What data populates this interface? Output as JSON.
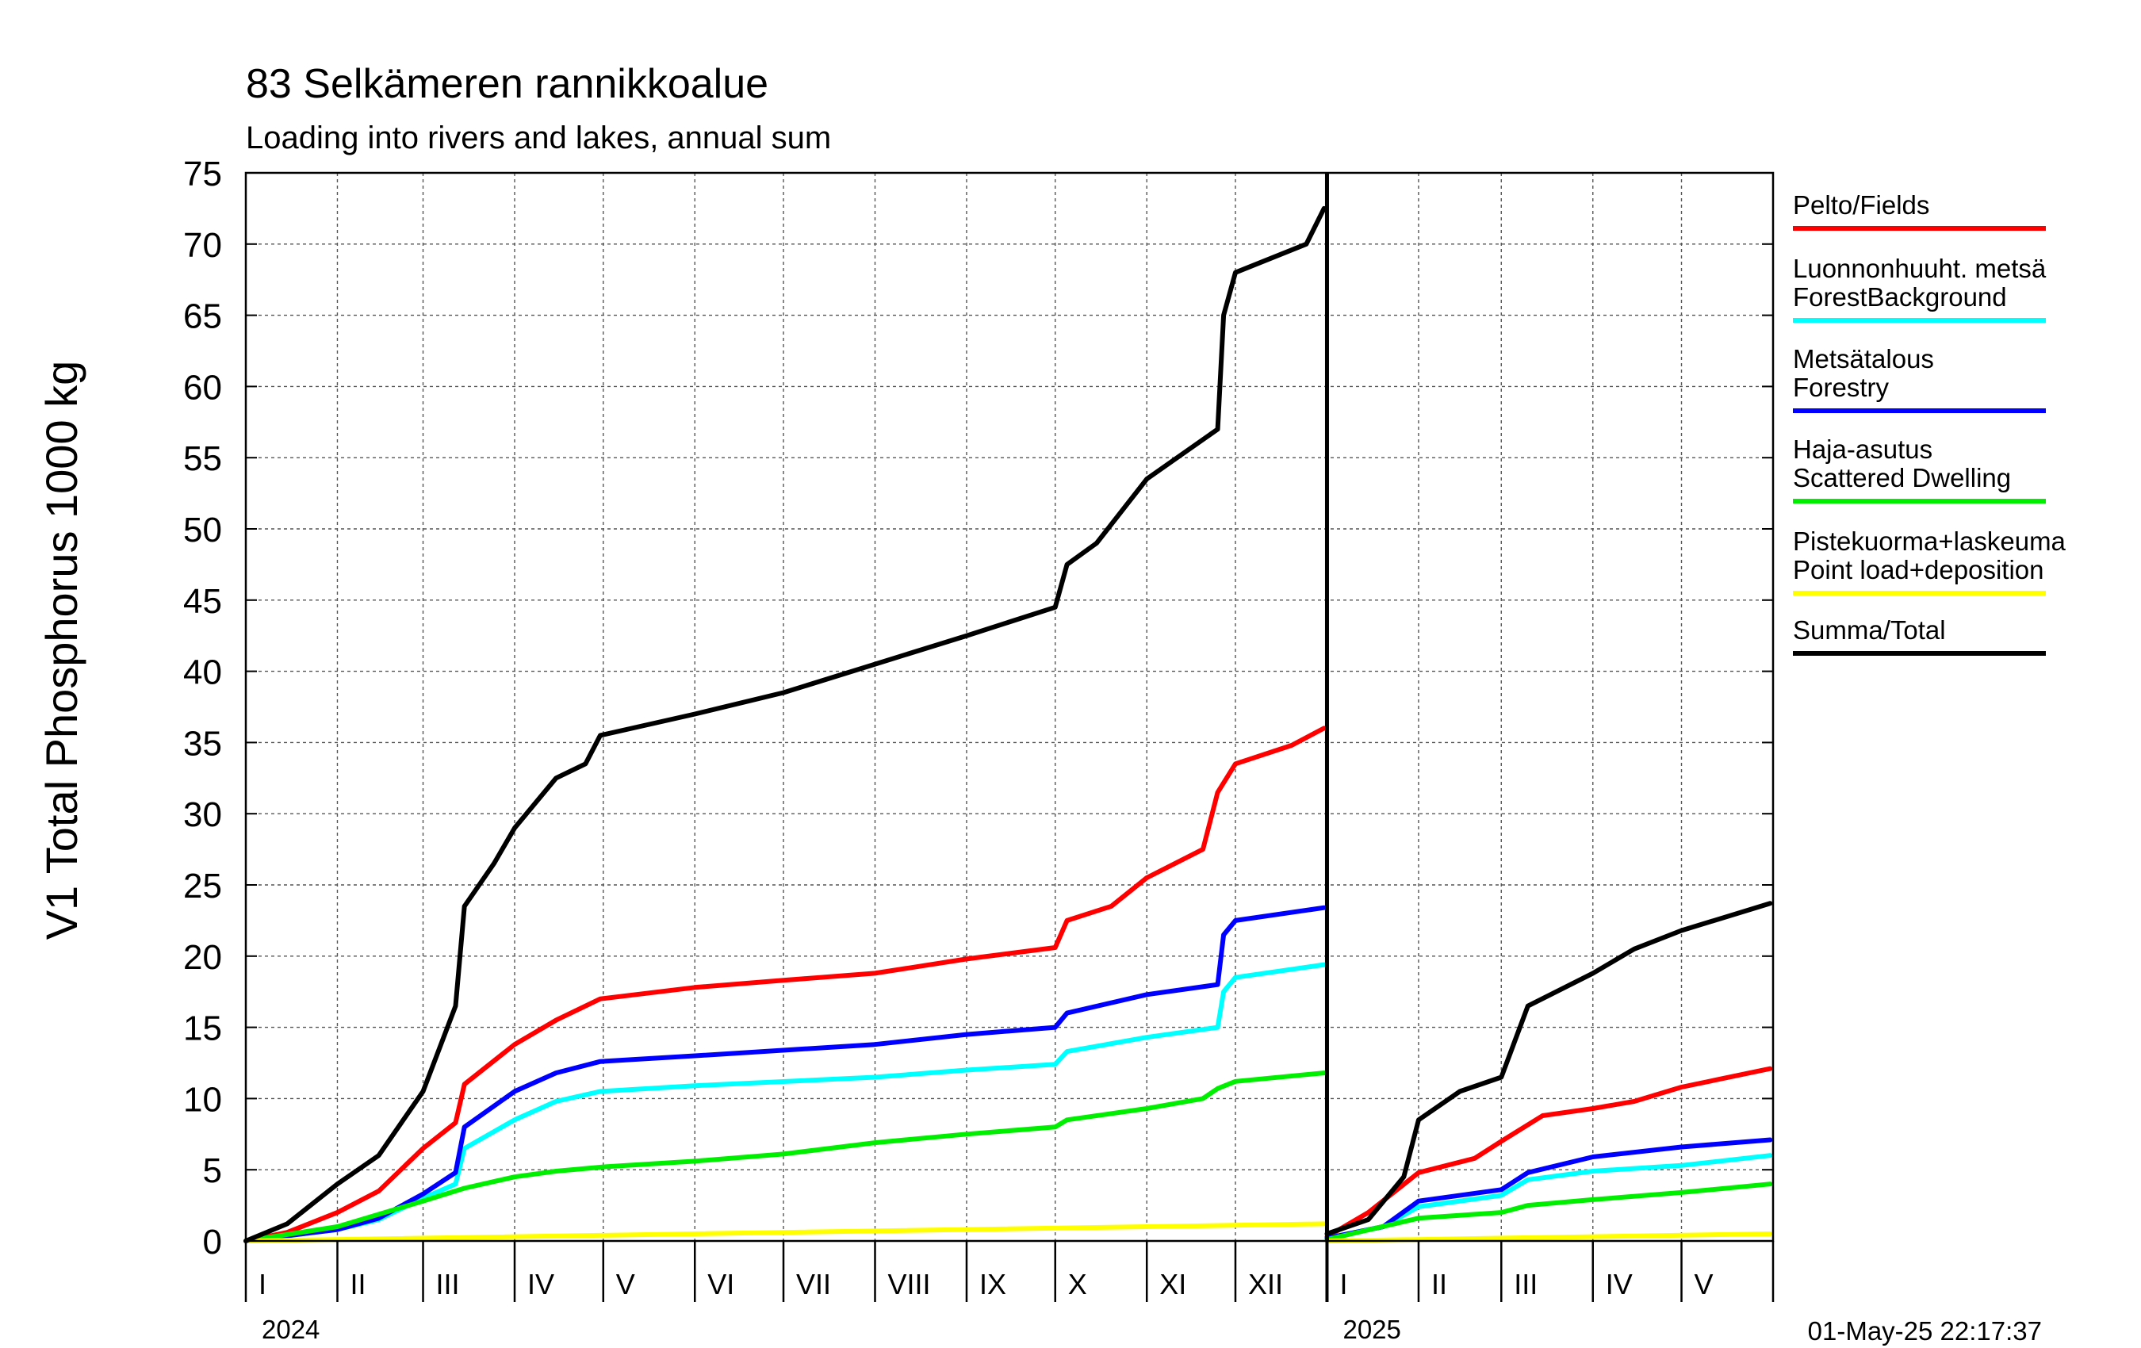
{
  "chart_data": {
    "type": "line",
    "title": "83 Selkämeren rannikkoalue",
    "subtitle": "Loading into rivers and lakes, annual sum",
    "ylabel": "V1 Total Phosphorus 1000 kg",
    "ylim": [
      0,
      75
    ],
    "yticks": [
      0,
      5,
      10,
      15,
      20,
      25,
      30,
      35,
      40,
      45,
      50,
      55,
      60,
      65,
      70,
      75
    ],
    "grid": true,
    "legend_position": "right",
    "timestamp": "01-May-25 22:17:37",
    "years": [
      "2024",
      "2025"
    ],
    "x_range": [
      "2024-01-01",
      "2025-05-31"
    ],
    "year_break": "2025-01-01",
    "months": [
      {
        "label": "I",
        "start": "2024-01-01"
      },
      {
        "label": "II",
        "start": "2024-02-01"
      },
      {
        "label": "III",
        "start": "2024-03-01"
      },
      {
        "label": "IV",
        "start": "2024-04-01"
      },
      {
        "label": "V",
        "start": "2024-05-01"
      },
      {
        "label": "VI",
        "start": "2024-06-01"
      },
      {
        "label": "VII",
        "start": "2024-07-01"
      },
      {
        "label": "VIII",
        "start": "2024-08-01"
      },
      {
        "label": "IX",
        "start": "2024-09-01"
      },
      {
        "label": "X",
        "start": "2024-10-01"
      },
      {
        "label": "XI",
        "start": "2024-11-01"
      },
      {
        "label": "XII",
        "start": "2024-12-01"
      },
      {
        "label": "I",
        "start": "2025-01-01"
      },
      {
        "label": "II",
        "start": "2025-02-01"
      },
      {
        "label": "III",
        "start": "2025-03-01"
      },
      {
        "label": "IV",
        "start": "2025-04-01"
      },
      {
        "label": "V",
        "start": "2025-05-01"
      }
    ],
    "series": [
      {
        "name": "Pelto/Fields",
        "color": "#ff0000",
        "segments": [
          {
            "x": [
              "2024-01-01",
              "2024-01-15",
              "2024-02-01",
              "2024-02-15",
              "2024-03-01",
              "2024-03-12",
              "2024-03-15",
              "2024-04-01",
              "2024-04-15",
              "2024-04-30",
              "2024-06-01",
              "2024-07-01",
              "2024-08-01",
              "2024-09-01",
              "2024-10-01",
              "2024-10-05",
              "2024-10-20",
              "2024-11-01",
              "2024-11-20",
              "2024-11-25",
              "2024-12-01",
              "2024-12-20",
              "2024-12-31"
            ],
            "y": [
              0,
              0.6,
              2.0,
              3.5,
              6.5,
              8.3,
              11.0,
              13.8,
              15.5,
              17.0,
              17.8,
              18.3,
              18.8,
              19.8,
              20.6,
              22.5,
              23.5,
              25.5,
              27.5,
              31.5,
              33.5,
              34.8,
              36.0
            ]
          },
          {
            "x": [
              "2025-01-01",
              "2025-01-15",
              "2025-02-01",
              "2025-02-20",
              "2025-03-01",
              "2025-03-15",
              "2025-04-01",
              "2025-04-15",
              "2025-05-01",
              "2025-05-31"
            ],
            "y": [
              0.3,
              2.0,
              4.8,
              5.8,
              7.0,
              8.8,
              9.3,
              9.8,
              10.8,
              12.1
            ]
          }
        ]
      },
      {
        "name": "Luonnonhuuht. metsä\nForestBackground",
        "color": "#00ffff",
        "segments": [
          {
            "x": [
              "2024-01-01",
              "2024-02-01",
              "2024-02-15",
              "2024-03-01",
              "2024-03-12",
              "2024-03-15",
              "2024-04-01",
              "2024-04-15",
              "2024-04-30",
              "2024-06-01",
              "2024-08-01",
              "2024-09-01",
              "2024-10-01",
              "2024-10-05",
              "2024-11-01",
              "2024-11-25",
              "2024-11-27",
              "2024-12-01",
              "2024-12-31"
            ],
            "y": [
              0,
              0.8,
              1.5,
              3.0,
              4.0,
              6.5,
              8.5,
              9.8,
              10.5,
              10.9,
              11.5,
              12.0,
              12.4,
              13.3,
              14.3,
              15.0,
              17.5,
              18.5,
              19.4
            ]
          },
          {
            "x": [
              "2025-01-01",
              "2025-01-20",
              "2025-02-01",
              "2025-03-01",
              "2025-03-10",
              "2025-04-01",
              "2025-05-01",
              "2025-05-31"
            ],
            "y": [
              0.2,
              1.0,
              2.4,
              3.2,
              4.3,
              4.9,
              5.3,
              6.0
            ]
          }
        ]
      },
      {
        "name": "Metsätalous\nForestry",
        "color": "#0000ff",
        "segments": [
          {
            "x": [
              "2024-01-01",
              "2024-02-01",
              "2024-02-15",
              "2024-03-01",
              "2024-03-12",
              "2024-03-15",
              "2024-04-01",
              "2024-04-15",
              "2024-04-30",
              "2024-06-01",
              "2024-08-01",
              "2024-09-01",
              "2024-10-01",
              "2024-10-05",
              "2024-11-01",
              "2024-11-25",
              "2024-11-27",
              "2024-12-01",
              "2024-12-31"
            ],
            "y": [
              0,
              0.8,
              1.6,
              3.3,
              4.8,
              8.0,
              10.5,
              11.8,
              12.6,
              13.0,
              13.8,
              14.5,
              15.0,
              16.0,
              17.3,
              18.0,
              21.5,
              22.5,
              23.4
            ]
          },
          {
            "x": [
              "2025-01-01",
              "2025-01-20",
              "2025-02-01",
              "2025-03-01",
              "2025-03-10",
              "2025-04-01",
              "2025-05-01",
              "2025-05-31"
            ],
            "y": [
              0.2,
              1.0,
              2.8,
              3.6,
              4.8,
              5.9,
              6.6,
              7.1
            ]
          }
        ]
      },
      {
        "name": "Haja-asutus\nScattered Dwelling",
        "color": "#00ee00",
        "segments": [
          {
            "x": [
              "2024-01-01",
              "2024-02-01",
              "2024-03-01",
              "2024-03-15",
              "2024-04-01",
              "2024-04-15",
              "2024-05-01",
              "2024-06-01",
              "2024-07-01",
              "2024-08-01",
              "2024-09-01",
              "2024-10-01",
              "2024-10-05",
              "2024-11-01",
              "2024-11-20",
              "2024-11-25",
              "2024-12-01",
              "2024-12-31"
            ],
            "y": [
              0,
              1.0,
              2.8,
              3.7,
              4.5,
              4.9,
              5.2,
              5.6,
              6.1,
              6.9,
              7.5,
              8.0,
              8.5,
              9.3,
              10.0,
              10.7,
              11.2,
              11.8
            ]
          },
          {
            "x": [
              "2025-01-01",
              "2025-02-01",
              "2025-03-01",
              "2025-03-10",
              "2025-04-01",
              "2025-05-01",
              "2025-05-31"
            ],
            "y": [
              0.1,
              1.6,
              2.0,
              2.5,
              2.9,
              3.4,
              4.0
            ]
          }
        ]
      },
      {
        "name": "Pistekuorma+laskeuma\nPoint load+deposition",
        "color": "#ffff00",
        "segments": [
          {
            "x": [
              "2024-01-01",
              "2024-12-31"
            ],
            "y": [
              0,
              1.2
            ]
          },
          {
            "x": [
              "2025-01-01",
              "2025-05-31"
            ],
            "y": [
              0,
              0.5
            ]
          }
        ]
      },
      {
        "name": "Summa/Total",
        "color": "#000000",
        "segments": [
          {
            "x": [
              "2024-01-01",
              "2024-01-15",
              "2024-02-01",
              "2024-02-15",
              "2024-03-01",
              "2024-03-12",
              "2024-03-15",
              "2024-03-25",
              "2024-04-01",
              "2024-04-15",
              "2024-04-25",
              "2024-04-30",
              "2024-06-01",
              "2024-07-01",
              "2024-08-01",
              "2024-09-01",
              "2024-10-01",
              "2024-10-05",
              "2024-10-15",
              "2024-11-01",
              "2024-11-25",
              "2024-11-27",
              "2024-12-01",
              "2024-12-25",
              "2024-12-31"
            ],
            "y": [
              0,
              1.2,
              4.0,
              6.0,
              10.5,
              16.5,
              23.5,
              26.5,
              29.0,
              32.5,
              33.5,
              35.5,
              37.0,
              38.5,
              40.5,
              42.5,
              44.5,
              47.5,
              49.0,
              53.5,
              57.0,
              65.0,
              68.0,
              70.0,
              72.5
            ]
          },
          {
            "x": [
              "2025-01-01",
              "2025-01-15",
              "2025-01-27",
              "2025-02-01",
              "2025-02-15",
              "2025-03-01",
              "2025-03-10",
              "2025-04-01",
              "2025-04-15",
              "2025-05-01",
              "2025-05-31"
            ],
            "y": [
              0.5,
              1.5,
              4.5,
              8.5,
              10.5,
              11.5,
              16.5,
              18.8,
              20.5,
              21.8,
              23.7
            ]
          }
        ]
      }
    ]
  }
}
